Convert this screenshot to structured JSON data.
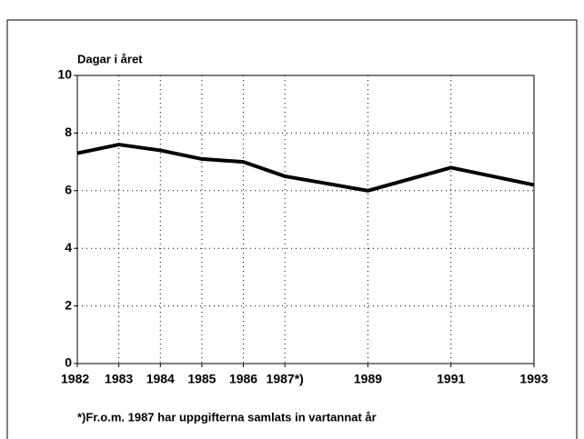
{
  "chart_data": {
    "type": "line",
    "y_label": "Dagar i året",
    "footnote": "*)Fr.o.m. 1987 har uppgifterna samlats in vartannat år",
    "x": [
      1982,
      1983,
      1984,
      1985,
      1986,
      1987,
      1989,
      1991,
      1993
    ],
    "series": [
      {
        "name": null,
        "color": "#000000",
        "values": [
          7.3,
          7.6,
          7.4,
          7.1,
          7.0,
          6.5,
          6.0,
          6.8,
          6.2
        ]
      }
    ],
    "xlim": [
      1982,
      1993
    ],
    "xticks": [
      1982,
      1983,
      1984,
      1985,
      1986,
      {
        "value": 1987,
        "label": "1987*)"
      },
      1989,
      1991,
      1993
    ],
    "ylim": [
      0,
      10
    ],
    "yticks": [
      0,
      2,
      4,
      6,
      8,
      10
    ],
    "grid": true
  }
}
